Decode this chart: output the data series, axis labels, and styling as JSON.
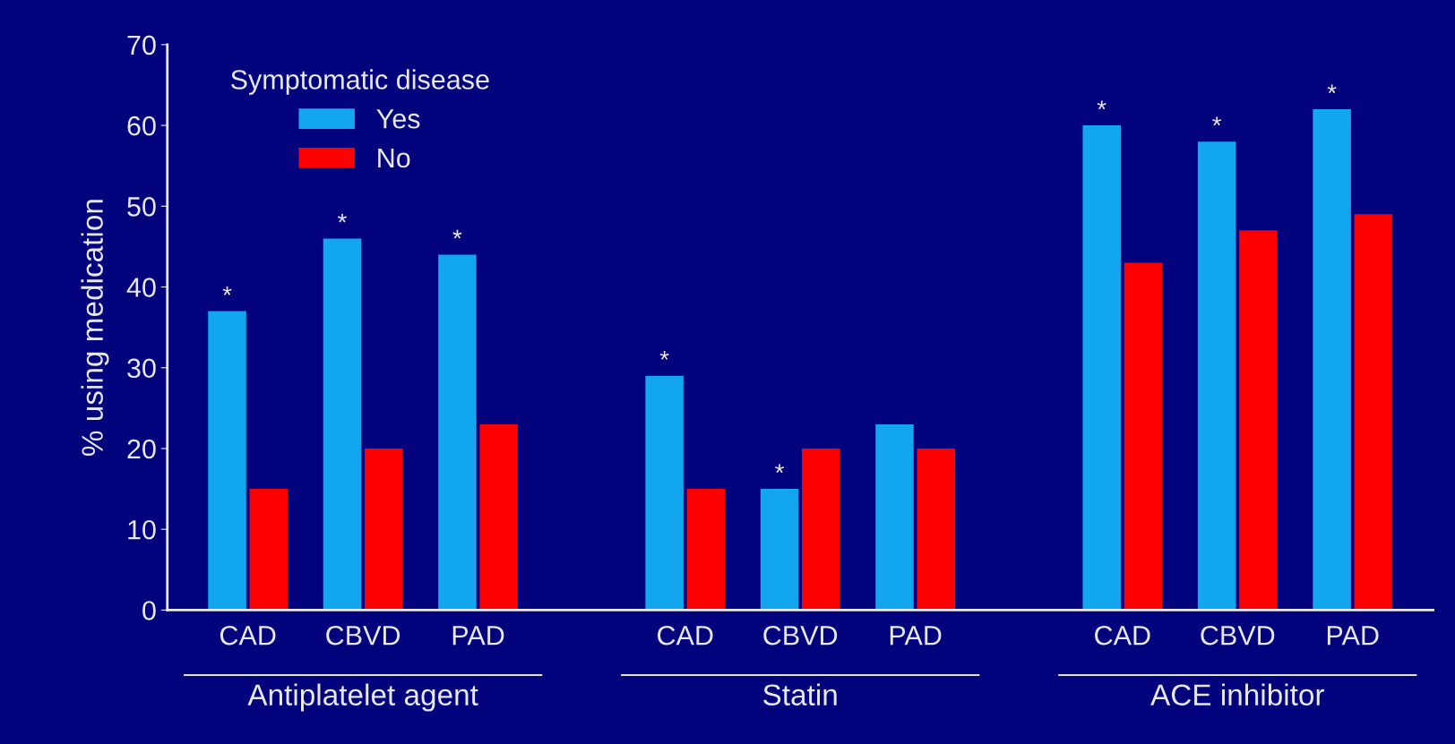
{
  "chart_data": {
    "type": "bar",
    "ylabel": "% using medication",
    "legend_title": "Symptomatic disease",
    "legend": "top left",
    "grid": false,
    "categories": [
      "CAD",
      "CBVD",
      "PAD",
      "CAD",
      "CBVD",
      "PAD",
      "CAD",
      "CBVD",
      "PAD"
    ],
    "series": [
      {
        "name": "Yes",
        "color": "#12a6ee",
        "values": [
          37,
          46,
          44,
          29,
          15,
          23,
          60,
          58,
          62
        ],
        "value_labels": [
          "*",
          "*",
          "*",
          "*",
          "*",
          null,
          "*",
          "*",
          "*"
        ]
      },
      {
        "name": "No",
        "color": "#ff0000",
        "values": [
          15,
          20,
          23,
          15,
          20,
          20,
          43,
          47,
          49
        ]
      }
    ],
    "annotations": [
      "Antiplatelet agent",
      "Statin",
      "ACE inhibitor"
    ],
    "ylim": [
      0,
      70
    ],
    "yticks": [
      0,
      10,
      20,
      30,
      40,
      50,
      60,
      70
    ]
  }
}
